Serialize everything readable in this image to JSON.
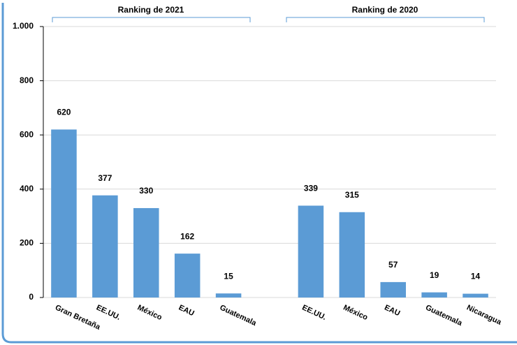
{
  "chart_data": {
    "type": "bar",
    "annotations": [
      "Ranking de 2021",
      "Ranking de 2020"
    ],
    "categories": [
      "Gran Bretaña",
      "EE.UU.",
      "México",
      "EAU",
      "Guatemala",
      null,
      "EE.UU.",
      "México",
      "EAU",
      "Guatemala",
      "Nicaragua"
    ],
    "values": [
      620,
      377,
      330,
      162,
      15,
      null,
      339,
      315,
      57,
      19,
      14
    ],
    "color": "#5b9bd5",
    "ylim": [
      0,
      1000
    ],
    "yticks": [
      0,
      200,
      400,
      600,
      800,
      {
        "value": 1000,
        "label": "1.000"
      }
    ],
    "grid": true
  }
}
